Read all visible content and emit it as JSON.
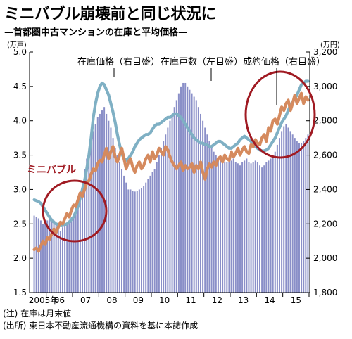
{
  "header": {
    "title": "ミニバブル崩壊前と同じ状況に",
    "subtitle": "—首都圏中古マンションの在庫と平均価格—",
    "left_unit": "(万戸)",
    "right_unit": "(万円)"
  },
  "notes": {
    "note1": "(注) 在庫は月末値",
    "note2": "(出所) 東日本不動産流通機構の資料を基に本誌作成"
  },
  "colors": {
    "bars": "#8a8fc8",
    "asking_line": "#7fb0c4",
    "sold_line": "#d58a5e",
    "circle": "#a01a22",
    "mini_text": "#a01a22"
  },
  "chart_data": {
    "type": "bar",
    "title": "ミニバブル崩壊前と同じ状況に",
    "subtitle": "—首都圏中古マンションの在庫と平均価格—",
    "x_start": "2005-07",
    "x_end": "2015-12",
    "frequency": "monthly",
    "x_tick_labels": [
      "2005年",
      "06",
      "07",
      "08",
      "09",
      "10",
      "11",
      "12",
      "13",
      "14",
      "15"
    ],
    "left_axis": {
      "unit": "(万戸)",
      "ylim": [
        1.5,
        5.0
      ],
      "ticks": [
        "1.5",
        "2.0",
        "2.5",
        "3.0",
        "3.5",
        "4.0",
        "4.5",
        "5.0"
      ]
    },
    "right_axis": {
      "unit": "(万円)",
      "ylim": [
        1800,
        3200
      ],
      "ticks": [
        "1,800",
        "2,000",
        "2,200",
        "2,400",
        "2,600",
        "2,800",
        "3,000",
        "3,200"
      ]
    },
    "grid": false,
    "annotations": {
      "asking": "在庫価格（右目盛）",
      "inventory": "在庫戸数（左目盛）",
      "sold": "成約価格（右目盛）",
      "mini_bubble": "ミニバブル"
    },
    "series": [
      {
        "name": "在庫戸数（左目盛）",
        "type": "bar",
        "axis": "left",
        "color": "#8a8fc8",
        "values": [
          2.62,
          2.6,
          2.58,
          2.55,
          2.5,
          2.52,
          2.55,
          2.6,
          2.58,
          2.55,
          2.5,
          2.45,
          2.4,
          2.45,
          2.48,
          2.5,
          2.55,
          2.6,
          2.65,
          2.75,
          2.85,
          2.95,
          3.1,
          3.3,
          3.45,
          3.55,
          3.7,
          3.85,
          3.95,
          4.05,
          4.1,
          4.15,
          4.2,
          4.1,
          4.0,
          3.9,
          3.75,
          3.6,
          3.5,
          3.4,
          3.3,
          3.2,
          3.1,
          3.0,
          3.0,
          2.98,
          2.97,
          2.98,
          3.0,
          3.02,
          3.05,
          3.1,
          3.15,
          3.2,
          3.25,
          3.3,
          3.4,
          3.5,
          3.6,
          3.7,
          3.8,
          3.9,
          4.0,
          4.1,
          4.2,
          4.3,
          4.4,
          4.5,
          4.55,
          4.55,
          4.5,
          4.45,
          4.4,
          4.35,
          4.3,
          4.2,
          4.1,
          4.0,
          3.9,
          3.8,
          3.7,
          3.6,
          3.55,
          3.5,
          3.45,
          3.45,
          3.4,
          3.4,
          3.4,
          3.4,
          3.42,
          3.45,
          3.4,
          3.38,
          3.35,
          3.4,
          3.42,
          3.45,
          3.4,
          3.38,
          3.4,
          3.42,
          3.4,
          3.35,
          3.32,
          3.35,
          3.4,
          3.42,
          3.45,
          3.5,
          3.55,
          3.65,
          3.75,
          3.85,
          3.92,
          3.95,
          3.9,
          3.85,
          3.8,
          3.75,
          3.7,
          3.68,
          3.68,
          3.7,
          3.75,
          3.8
        ]
      },
      {
        "name": "在庫価格（右目盛）",
        "type": "line",
        "axis": "right",
        "color": "#7fb0c4",
        "values": [
          2340,
          2335,
          2330,
          2320,
          2300,
          2280,
          2260,
          2240,
          2220,
          2210,
          2200,
          2195,
          2190,
          2190,
          2195,
          2200,
          2210,
          2225,
          2240,
          2270,
          2300,
          2350,
          2400,
          2450,
          2520,
          2600,
          2700,
          2820,
          2900,
          2960,
          3000,
          3020,
          3010,
          2980,
          2950,
          2900,
          2850,
          2790,
          2720,
          2660,
          2610,
          2580,
          2570,
          2580,
          2600,
          2620,
          2650,
          2670,
          2690,
          2700,
          2710,
          2720,
          2720,
          2730,
          2750,
          2770,
          2780,
          2780,
          2790,
          2800,
          2810,
          2820,
          2820,
          2830,
          2840,
          2840,
          2830,
          2820,
          2800,
          2780,
          2760,
          2740,
          2720,
          2700,
          2690,
          2680,
          2670,
          2670,
          2660,
          2660,
          2650,
          2650,
          2660,
          2670,
          2680,
          2680,
          2670,
          2660,
          2650,
          2640,
          2640,
          2650,
          2660,
          2670,
          2690,
          2700,
          2710,
          2700,
          2690,
          2680,
          2660,
          2650,
          2640,
          2630,
          2625,
          2625,
          2630,
          2640,
          2660,
          2680,
          2700,
          2730,
          2760,
          2790,
          2810,
          2830,
          2860,
          2890,
          2910,
          2930,
          2950,
          2980,
          3010,
          3020,
          3030,
          3030
        ]
      },
      {
        "name": "成約価格（右目盛）",
        "type": "line",
        "axis": "right",
        "color": "#d58a5e",
        "values": [
          2050,
          2060,
          2040,
          2070,
          2100,
          2080,
          2120,
          2110,
          2140,
          2170,
          2150,
          2180,
          2210,
          2200,
          2230,
          2260,
          2240,
          2280,
          2310,
          2300,
          2340,
          2380,
          2360,
          2400,
          2440,
          2450,
          2490,
          2520,
          2510,
          2550,
          2570,
          2560,
          2600,
          2640,
          2580,
          2620,
          2650,
          2590,
          2560,
          2600,
          2640,
          2580,
          2520,
          2560,
          2580,
          2530,
          2500,
          2540,
          2560,
          2520,
          2540,
          2580,
          2600,
          2560,
          2620,
          2580,
          2600,
          2640,
          2620,
          2600,
          2650,
          2630,
          2590,
          2560,
          2540,
          2520,
          2540,
          2560,
          2510,
          2540,
          2520,
          2530,
          2550,
          2500,
          2540,
          2520,
          2560,
          2500,
          2460,
          2520,
          2550,
          2530,
          2560,
          2540,
          2580,
          2590,
          2560,
          2600,
          2580,
          2570,
          2620,
          2590,
          2610,
          2640,
          2600,
          2630,
          2650,
          2620,
          2610,
          2660,
          2650,
          2690,
          2670,
          2660,
          2700,
          2720,
          2680,
          2760,
          2740,
          2800,
          2810,
          2780,
          2830,
          2880,
          2860,
          2900,
          2920,
          2860,
          2900,
          2950,
          2900,
          2930,
          2960,
          2900,
          2940,
          2920
        ]
      }
    ]
  }
}
